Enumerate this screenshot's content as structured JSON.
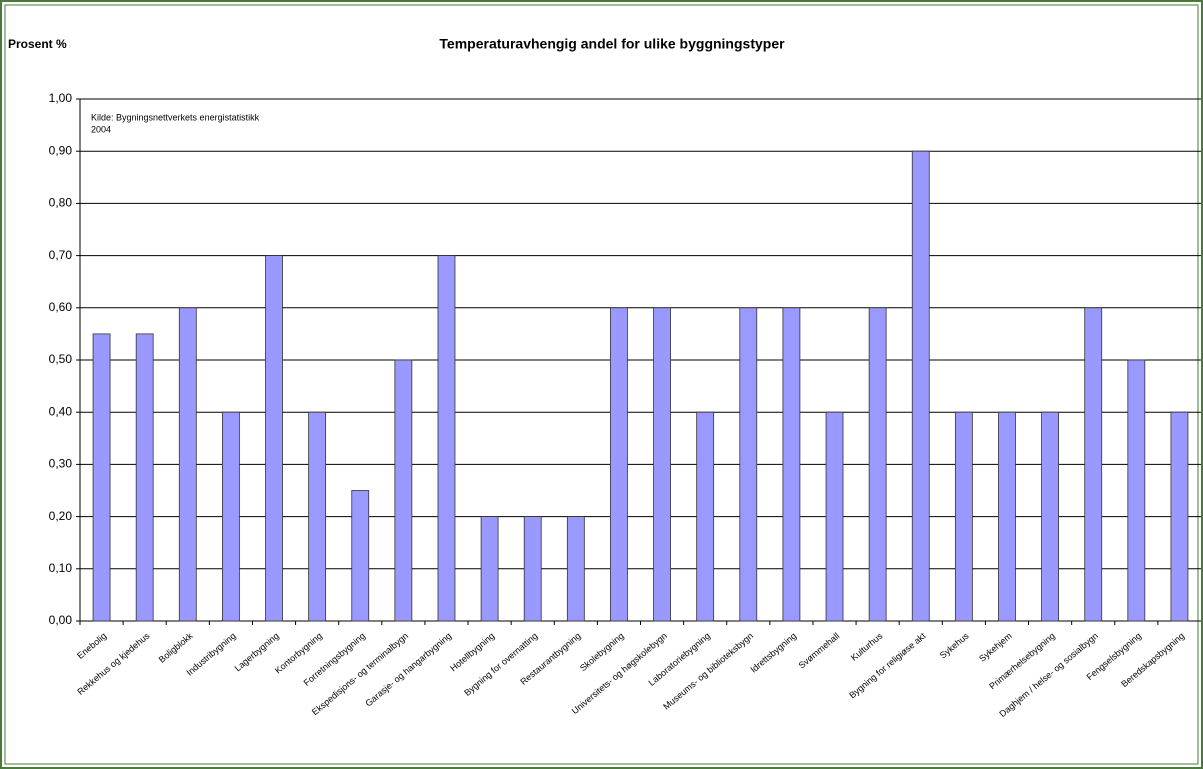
{
  "chart_data": {
    "type": "bar",
    "title": "Temperaturavhengig andel for ulike byggningstyper",
    "y_label": "Prosent %",
    "annotation": [
      "Kilde: Bygningsnettverkets energistatistikk",
      "2004"
    ],
    "categories": [
      "Enebolig",
      "Rekkehus og kjedehus",
      "Boligblokk",
      "Industribygning",
      "Lagerbygning",
      "Kontorbygning",
      "Forretningsbygning",
      "Ekspedisjons- og terminalbygn",
      "Garasje- og hangarbygning",
      "Hotellbygning",
      "Bygning for overnatting",
      "Restaurantbygning",
      "Skolebygning",
      "Universitets- og høgskolebygn",
      "Laboratoriebygning",
      "Museums- og biblioteksbygn",
      "Idrettsbygning",
      "Svømmehall",
      "Kulturhus",
      "Bygning for religiøse akt",
      "Sykehus",
      "Sykehjem",
      "Primærhelsebygning",
      "Daghjem / helse- og sosialbygn",
      "Fengselsbygning",
      "Beredskapsbygning"
    ],
    "values": [
      0.55,
      0.55,
      0.6,
      0.4,
      0.7,
      0.4,
      0.25,
      0.5,
      0.7,
      0.2,
      0.2,
      0.2,
      0.6,
      0.6,
      0.4,
      0.6,
      0.6,
      0.4,
      0.6,
      0.9,
      0.4,
      0.4,
      0.4,
      0.6,
      0.5,
      0.4
    ],
    "color": "#9999ff",
    "ylim": [
      0,
      1
    ],
    "yticks": [
      {
        "value": 0,
        "label": "0,00"
      },
      {
        "value": 0.1,
        "label": "0,10"
      },
      {
        "value": 0.2,
        "label": "0,20"
      },
      {
        "value": 0.3,
        "label": "0,30"
      },
      {
        "value": 0.4,
        "label": "0,40"
      },
      {
        "value": 0.5,
        "label": "0,50"
      },
      {
        "value": 0.6,
        "label": "0,60"
      },
      {
        "value": 0.7,
        "label": "0,70"
      },
      {
        "value": 0.8,
        "label": "0,80"
      },
      {
        "value": 0.9,
        "label": "0,90"
      },
      {
        "value": 1,
        "label": "1,00"
      }
    ],
    "grid": true
  }
}
